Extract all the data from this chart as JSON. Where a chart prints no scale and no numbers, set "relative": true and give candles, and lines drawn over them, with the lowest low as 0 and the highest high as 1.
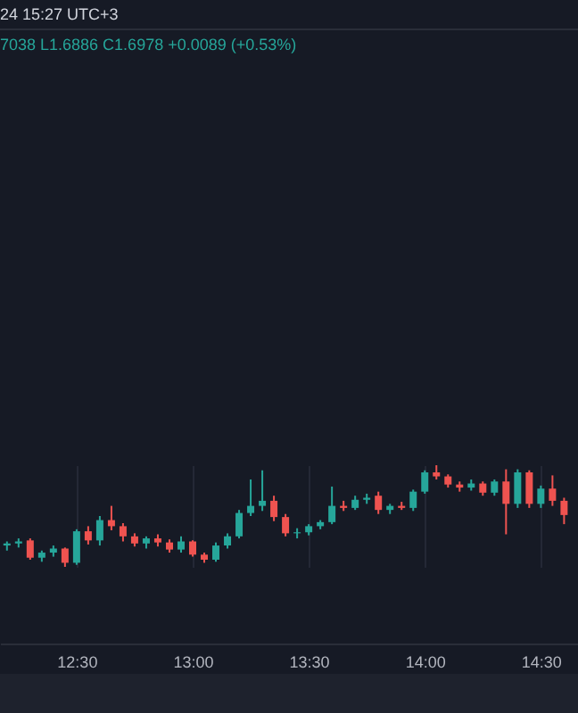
{
  "chart_data": {
    "type": "candlestick",
    "relative": true,
    "annotations": [
      "24 15:27 UTC+3",
      "7038 L1.6886 C1.6978 +0.0089 (+0.53%)"
    ],
    "x": [
      12.2,
      12.25,
      12.3,
      12.35,
      12.4,
      12.45,
      12.5,
      12.55,
      12.6,
      12.65,
      12.7,
      12.75,
      12.8,
      12.85,
      12.9,
      12.95,
      13.0,
      13.05,
      13.1,
      13.15,
      13.2,
      13.25,
      13.3,
      13.35,
      13.4,
      13.45,
      13.5,
      13.55,
      13.6,
      13.65,
      13.7,
      13.75,
      13.8,
      13.85,
      13.9,
      13.95,
      14.0,
      14.05,
      14.1,
      14.15,
      14.2,
      14.25,
      14.3,
      14.35,
      14.4,
      14.45,
      14.5,
      14.55,
      14.6
    ],
    "ohlc": [
      [
        0.21,
        0.25,
        0.16,
        0.23
      ],
      [
        0.23,
        0.28,
        0.19,
        0.25
      ],
      [
        0.26,
        0.28,
        0.07,
        0.09
      ],
      [
        0.09,
        0.16,
        0.05,
        0.14
      ],
      [
        0.14,
        0.21,
        0.1,
        0.18
      ],
      [
        0.18,
        0.19,
        0.0,
        0.04
      ],
      [
        0.04,
        0.37,
        0.02,
        0.35
      ],
      [
        0.35,
        0.4,
        0.22,
        0.26
      ],
      [
        0.26,
        0.5,
        0.21,
        0.46
      ],
      [
        0.46,
        0.6,
        0.36,
        0.4
      ],
      [
        0.4,
        0.43,
        0.25,
        0.3
      ],
      [
        0.3,
        0.33,
        0.2,
        0.23
      ],
      [
        0.23,
        0.3,
        0.18,
        0.28
      ],
      [
        0.28,
        0.32,
        0.2,
        0.24
      ],
      [
        0.24,
        0.27,
        0.14,
        0.17
      ],
      [
        0.17,
        0.3,
        0.14,
        0.25
      ],
      [
        0.25,
        0.26,
        0.1,
        0.12
      ],
      [
        0.12,
        0.14,
        0.04,
        0.07
      ],
      [
        0.07,
        0.24,
        0.05,
        0.21
      ],
      [
        0.21,
        0.33,
        0.18,
        0.3
      ],
      [
        0.3,
        0.56,
        0.28,
        0.53
      ],
      [
        0.53,
        0.86,
        0.5,
        0.6
      ],
      [
        0.6,
        0.95,
        0.55,
        0.65
      ],
      [
        0.65,
        0.7,
        0.45,
        0.49
      ],
      [
        0.49,
        0.52,
        0.3,
        0.33
      ],
      [
        0.33,
        0.38,
        0.28,
        0.34
      ],
      [
        0.34,
        0.42,
        0.31,
        0.4
      ],
      [
        0.4,
        0.46,
        0.37,
        0.44
      ],
      [
        0.44,
        0.79,
        0.42,
        0.6
      ],
      [
        0.6,
        0.65,
        0.55,
        0.58
      ],
      [
        0.58,
        0.7,
        0.56,
        0.66
      ],
      [
        0.66,
        0.72,
        0.62,
        0.68
      ],
      [
        0.7,
        0.74,
        0.52,
        0.56
      ],
      [
        0.56,
        0.62,
        0.52,
        0.6
      ],
      [
        0.6,
        0.64,
        0.56,
        0.58
      ],
      [
        0.58,
        0.76,
        0.55,
        0.74
      ],
      [
        0.74,
        0.95,
        0.72,
        0.93
      ],
      [
        0.93,
        1.0,
        0.86,
        0.89
      ],
      [
        0.89,
        0.91,
        0.78,
        0.81
      ],
      [
        0.81,
        0.84,
        0.74,
        0.78
      ],
      [
        0.78,
        0.86,
        0.75,
        0.82
      ],
      [
        0.82,
        0.84,
        0.7,
        0.73
      ],
      [
        0.73,
        0.86,
        0.7,
        0.84
      ],
      [
        0.84,
        0.96,
        0.32,
        0.62
      ],
      [
        0.62,
        0.96,
        0.58,
        0.93
      ],
      [
        0.93,
        0.95,
        0.58,
        0.62
      ],
      [
        0.62,
        0.8,
        0.58,
        0.77
      ],
      [
        0.77,
        0.9,
        0.6,
        0.65
      ],
      [
        0.65,
        0.68,
        0.42,
        0.51
      ]
    ],
    "colors": [
      "#26a69a",
      "#26a69a",
      "#ef5350",
      "#26a69a",
      "#26a69a",
      "#ef5350",
      "#26a69a",
      "#ef5350",
      "#26a69a",
      "#ef5350",
      "#ef5350",
      "#ef5350",
      "#26a69a",
      "#ef5350",
      "#ef5350",
      "#26a69a",
      "#ef5350",
      "#ef5350",
      "#26a69a",
      "#26a69a",
      "#26a69a",
      "#26a69a",
      "#26a69a",
      "#ef5350",
      "#ef5350",
      "#26a69a",
      "#26a69a",
      "#26a69a",
      "#26a69a",
      "#ef5350",
      "#26a69a",
      "#26a69a",
      "#ef5350",
      "#26a69a",
      "#ef5350",
      "#26a69a",
      "#26a69a",
      "#ef5350",
      "#ef5350",
      "#ef5350",
      "#26a69a",
      "#ef5350",
      "#26a69a",
      "#ef5350",
      "#26a69a",
      "#ef5350",
      "#26a69a",
      "#ef5350",
      "#ef5350"
    ],
    "xlim": [
      12.17,
      14.66
    ],
    "xticks": [
      {
        "value": 12.5,
        "label": "12:30"
      },
      {
        "value": 13,
        "label": "13:00"
      },
      {
        "value": 13.5,
        "label": "13:30"
      },
      {
        "value": 14,
        "label": "14:00"
      },
      {
        "value": 14.5,
        "label": "14:30"
      }
    ],
    "grid": "x"
  }
}
